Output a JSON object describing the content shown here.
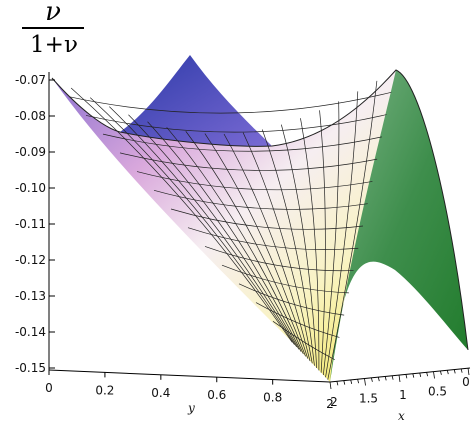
{
  "chart_data": {
    "type": "surface3d",
    "zlabel": {
      "numerator": "ν",
      "denominator": "1+ν"
    },
    "xlabel": "x",
    "ylabel": "y",
    "x_ticks": [
      "0.5",
      "1",
      "1.5",
      "2"
    ],
    "x_tick_extra": "0",
    "y_ticks": [
      "0",
      "0.2",
      "0.4",
      "0.6",
      "0.8"
    ],
    "y_tick_extra": "2",
    "z_ticks": [
      "-0.07",
      "-0.08",
      "-0.09",
      "-0.10",
      "-0.11",
      "-0.12",
      "-0.13",
      "-0.14",
      "-0.15"
    ],
    "xlim": [
      0,
      2
    ],
    "ylim": [
      0,
      1
    ],
    "zlim": [
      -0.15,
      -0.07
    ],
    "grid": "wireframe mesh on surface",
    "colormap": [
      "#3a3fb0",
      "#b36ad0",
      "#f3e6ee",
      "#ffffff",
      "#f2e570",
      "#2e8a3a"
    ]
  }
}
